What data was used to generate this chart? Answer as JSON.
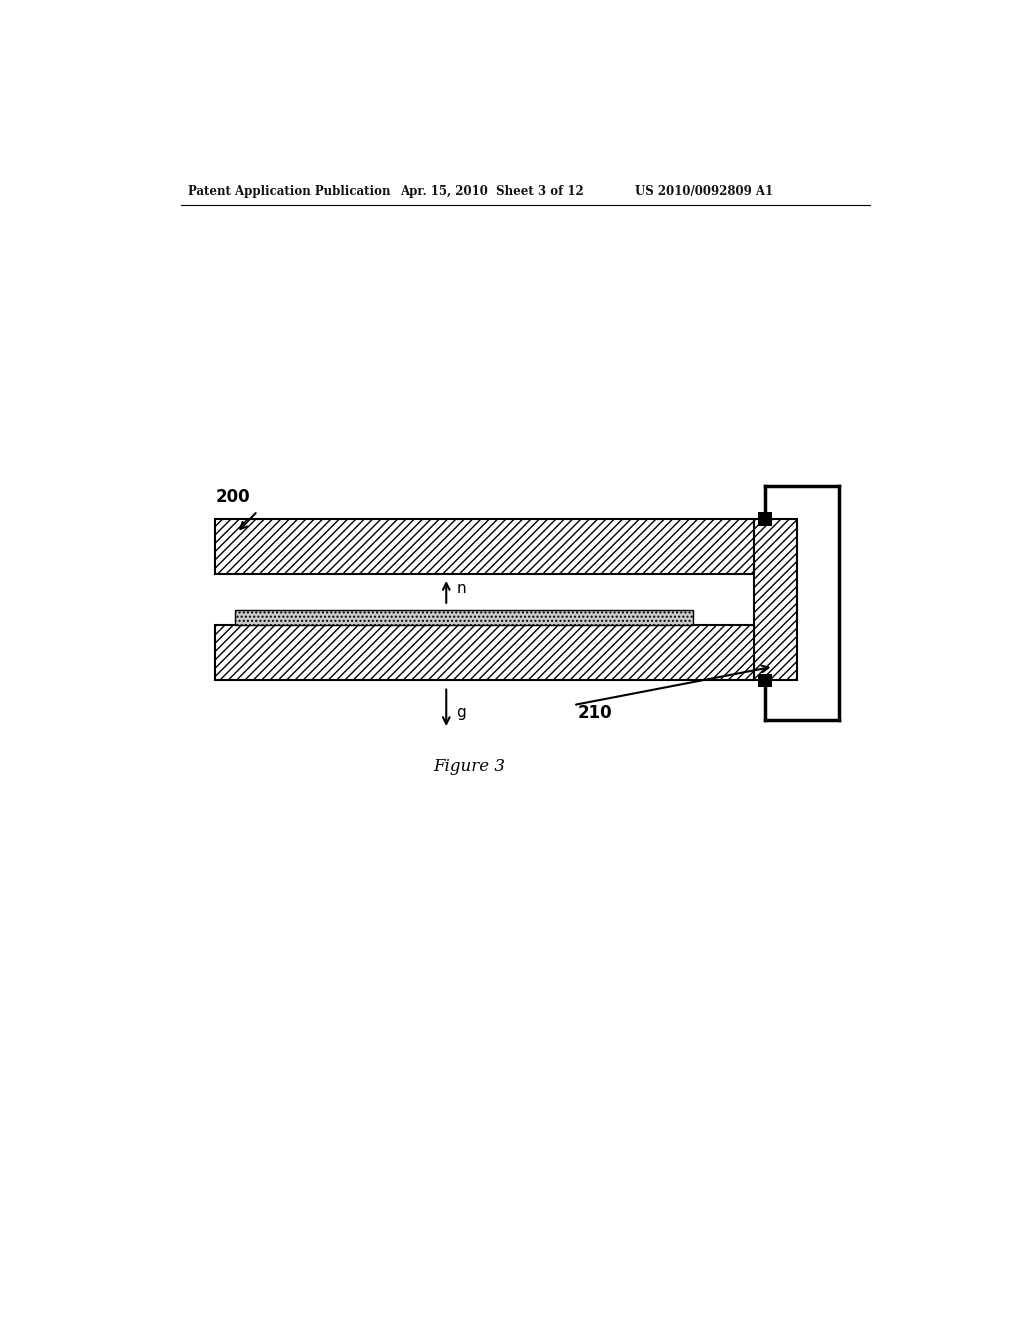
{
  "bg_color": "#ffffff",
  "header_left": "Patent Application Publication",
  "header_mid": "Apr. 15, 2010  Sheet 3 of 12",
  "header_right": "US 2010/0092809 A1",
  "figure_caption": "Figure 3",
  "label_200": "200",
  "label_210": "210",
  "label_n": "n",
  "label_g": "g"
}
